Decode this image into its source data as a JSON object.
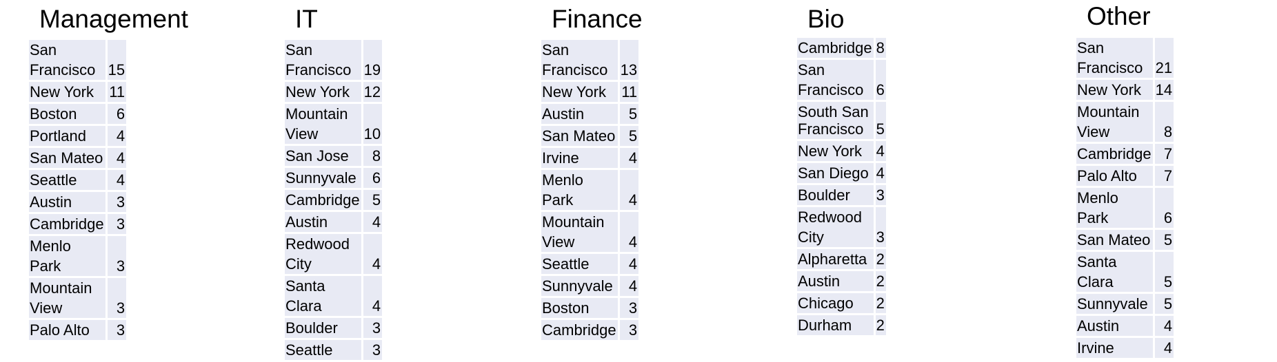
{
  "groups": [
    {
      "title": "Management",
      "rows": [
        {
          "city": "San Francisco",
          "count": "15"
        },
        {
          "city": "New York",
          "count": "11"
        },
        {
          "city": "Boston",
          "count": "6"
        },
        {
          "city": "Portland",
          "count": "4"
        },
        {
          "city": "San Mateo",
          "count": "4"
        },
        {
          "city": "Seattle",
          "count": "4"
        },
        {
          "city": "Austin",
          "count": "3"
        },
        {
          "city": "Cambridge",
          "count": "3"
        },
        {
          "city": "Menlo Park",
          "count": "3"
        },
        {
          "city": "Mountain View",
          "count": "3"
        },
        {
          "city": "Palo Alto",
          "count": "3"
        }
      ]
    },
    {
      "title": "IT",
      "rows": [
        {
          "city": "San Francisco",
          "count": "19"
        },
        {
          "city": "New York",
          "count": "12"
        },
        {
          "city": "Mountain View",
          "count": "10"
        },
        {
          "city": "San Jose",
          "count": "8"
        },
        {
          "city": "Sunnyvale",
          "count": "6"
        },
        {
          "city": "Cambridge",
          "count": "5"
        },
        {
          "city": "Austin",
          "count": "4"
        },
        {
          "city": "Redwood City",
          "count": "4"
        },
        {
          "city": "Santa Clara",
          "count": "4"
        },
        {
          "city": "Boulder",
          "count": "3"
        },
        {
          "city": "Seattle",
          "count": "3"
        }
      ]
    },
    {
      "title": "Finance",
      "rows": [
        {
          "city": "San Francisco",
          "count": "13"
        },
        {
          "city": "New York",
          "count": "11"
        },
        {
          "city": "Austin",
          "count": "5"
        },
        {
          "city": "San Mateo",
          "count": "5"
        },
        {
          "city": "Irvine",
          "count": "4"
        },
        {
          "city": "Menlo Park",
          "count": "4"
        },
        {
          "city": "Mountain View",
          "count": "4"
        },
        {
          "city": "Seattle",
          "count": "4"
        },
        {
          "city": "Sunnyvale",
          "count": "4"
        },
        {
          "city": "Boston",
          "count": "3"
        },
        {
          "city": "Cambridge",
          "count": "3"
        }
      ]
    },
    {
      "title": "Bio",
      "rows": [
        {
          "city": "Cambridge",
          "count": "8"
        },
        {
          "city": "San Francisco",
          "count": "6"
        },
        {
          "city": "South San Francisco",
          "count": "5"
        },
        {
          "city": "New York",
          "count": "4"
        },
        {
          "city": "San Diego",
          "count": "4"
        },
        {
          "city": "Boulder",
          "count": "3"
        },
        {
          "city": "Redwood City",
          "count": "3"
        },
        {
          "city": "Alpharetta",
          "count": "2"
        },
        {
          "city": "Austin",
          "count": "2"
        },
        {
          "city": "Chicago",
          "count": "2"
        },
        {
          "city": "Durham",
          "count": "2"
        }
      ]
    },
    {
      "title": "Other",
      "rows": [
        {
          "city": "San Francisco",
          "count": "21"
        },
        {
          "city": "New York",
          "count": "14"
        },
        {
          "city": "Mountain View",
          "count": "8"
        },
        {
          "city": "Cambridge",
          "count": "7"
        },
        {
          "city": "Palo Alto",
          "count": "7"
        },
        {
          "city": "Menlo Park",
          "count": "6"
        },
        {
          "city": "San Mateo",
          "count": "5"
        },
        {
          "city": "Santa Clara",
          "count": "5"
        },
        {
          "city": "Sunnyvale",
          "count": "5"
        },
        {
          "city": "Austin",
          "count": "4"
        },
        {
          "city": "Irvine",
          "count": "4"
        }
      ]
    }
  ]
}
